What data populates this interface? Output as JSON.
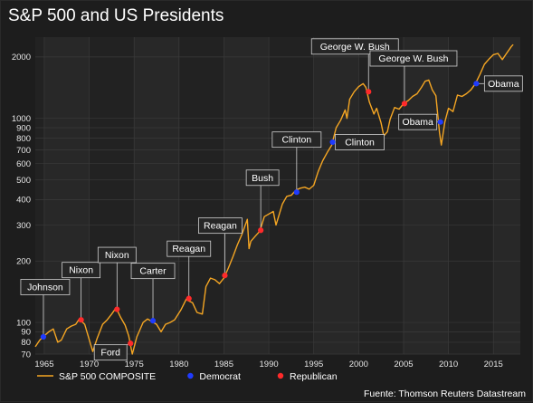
{
  "chart_data": {
    "type": "line",
    "title": "S&P 500 and US Presidents",
    "xlabel": "",
    "ylabel": "",
    "y_scale": "log",
    "xlim": [
      1964.0,
      2018.0
    ],
    "ylim": [
      70,
      2500
    ],
    "x_ticks": [
      1965,
      1970,
      1975,
      1980,
      1985,
      1990,
      1995,
      2000,
      2005,
      2010,
      2015
    ],
    "y_ticks": [
      70,
      80,
      90,
      100,
      200,
      300,
      400,
      500,
      600,
      700,
      800,
      900,
      1000,
      2000
    ],
    "grid": true,
    "line_color": "#f5a623",
    "series": [
      {
        "name": "S&P 500 COMPOSITE",
        "x": [
          1964.0,
          1964.5,
          1965.0,
          1965.5,
          1966.0,
          1966.5,
          1966.9,
          1967.5,
          1968.0,
          1968.5,
          1968.9,
          1969.5,
          1970.4,
          1970.9,
          1971.5,
          1972.0,
          1972.5,
          1973.0,
          1973.5,
          1974.0,
          1974.4,
          1974.8,
          1975.3,
          1976.0,
          1976.5,
          1977.0,
          1977.5,
          1978.0,
          1978.5,
          1979.0,
          1979.5,
          1980.2,
          1980.8,
          1981.0,
          1981.5,
          1982.0,
          1982.6,
          1983.0,
          1983.5,
          1984.0,
          1984.5,
          1985.0,
          1985.5,
          1986.0,
          1986.5,
          1987.0,
          1987.6,
          1987.8,
          1988.0,
          1988.5,
          1989.0,
          1989.5,
          1990.0,
          1990.5,
          1990.8,
          1991.5,
          1992.0,
          1992.5,
          1993.0,
          1993.5,
          1994.0,
          1994.5,
          1995.0,
          1995.5,
          1996.0,
          1996.5,
          1997.0,
          1997.5,
          1998.0,
          1998.5,
          1998.7,
          1999.0,
          1999.5,
          2000.0,
          2000.5,
          2000.8,
          2001.2,
          2001.7,
          2002.0,
          2002.5,
          2002.8,
          2003.2,
          2003.5,
          2004.0,
          2004.5,
          2005.0,
          2005.5,
          2006.0,
          2006.5,
          2007.0,
          2007.4,
          2007.8,
          2008.2,
          2008.6,
          2009.0,
          2009.2,
          2009.6,
          2010.0,
          2010.5,
          2011.0,
          2011.5,
          2012.0,
          2012.5,
          2013.0,
          2013.5,
          2014.0,
          2014.5,
          2015.0,
          2015.5,
          2016.0,
          2016.5,
          2017.0,
          2017.2
        ],
        "values": [
          76,
          82,
          86,
          90,
          93,
          80,
          82,
          93,
          96,
          98,
          104,
          98,
          72,
          84,
          98,
          103,
          110,
          118,
          106,
          97,
          86,
          70,
          85,
          100,
          104,
          101,
          98,
          90,
          98,
          100,
          103,
          115,
          130,
          128,
          125,
          112,
          110,
          150,
          165,
          162,
          155,
          165,
          185,
          210,
          240,
          270,
          320,
          230,
          250,
          265,
          280,
          330,
          340,
          350,
          300,
          380,
          415,
          420,
          445,
          455,
          460,
          450,
          470,
          550,
          620,
          680,
          740,
          900,
          980,
          1100,
          1000,
          1240,
          1350,
          1430,
          1480,
          1420,
          1200,
          1050,
          1120,
          950,
          820,
          860,
          990,
          1130,
          1110,
          1180,
          1220,
          1280,
          1320,
          1420,
          1520,
          1540,
          1380,
          1290,
          850,
          740,
          960,
          1120,
          1080,
          1300,
          1280,
          1320,
          1380,
          1480,
          1640,
          1840,
          1950,
          2050,
          2080,
          1940,
          2090,
          2250,
          2300
        ]
      }
    ],
    "presidents": [
      {
        "label": "Johnson",
        "party": "Democrat",
        "x": 1964.9,
        "y": 85
      },
      {
        "label": "Nixon",
        "party": "Republican",
        "x": 1969.1,
        "y": 103
      },
      {
        "label": "Nixon",
        "party": "Republican",
        "x": 1973.1,
        "y": 116
      },
      {
        "label": "Ford",
        "party": "Republican",
        "x": 1974.6,
        "y": 79
      },
      {
        "label": "Carter",
        "party": "Democrat",
        "x": 1977.1,
        "y": 102
      },
      {
        "label": "Reagan",
        "party": "Republican",
        "x": 1981.1,
        "y": 131
      },
      {
        "label": "Reagan",
        "party": "Republican",
        "x": 1985.1,
        "y": 170
      },
      {
        "label": "Bush",
        "party": "Republican",
        "x": 1989.1,
        "y": 283
      },
      {
        "label": "Clinton",
        "party": "Democrat",
        "x": 1993.1,
        "y": 435
      },
      {
        "label": "Clinton",
        "party": "Democrat",
        "x": 1997.1,
        "y": 765
      },
      {
        "label": "George W. Bush",
        "party": "Republican",
        "x": 2001.1,
        "y": 1350
      },
      {
        "label": "George W. Bush",
        "party": "Republican",
        "x": 2005.1,
        "y": 1180
      },
      {
        "label": "Obama",
        "party": "Democrat",
        "x": 2009.1,
        "y": 960
      },
      {
        "label": "Obama",
        "party": "Democrat",
        "x": 2013.1,
        "y": 1480
      }
    ],
    "legend": {
      "position": "bottom-left",
      "entries": [
        {
          "label": "S&P 500 COMPOSITE",
          "kind": "line",
          "color": "#f5a623"
        },
        {
          "label": "Democrat",
          "kind": "dot",
          "color": "#1f3bff"
        },
        {
          "label": "Republican",
          "kind": "dot",
          "color": "#ff2a2a"
        }
      ]
    },
    "source": "Fuente: Thomson Reuters Datastream"
  }
}
